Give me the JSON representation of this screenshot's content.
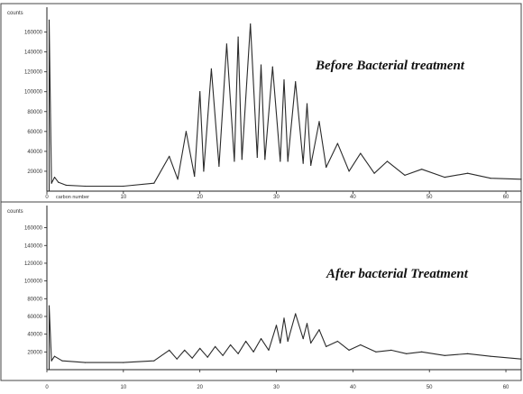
{
  "chart_data": [
    {
      "type": "line",
      "title": "Before Bacterial treatment",
      "ylabel": "counts",
      "xlabel": "carbon number",
      "xlim": [
        0,
        62
      ],
      "ylim": [
        0,
        185000
      ],
      "xticks": [
        "0",
        "10",
        "20",
        "30",
        "40",
        "50",
        "60"
      ],
      "yticks": [
        "20000",
        "40000",
        "60000",
        "80000",
        "100000",
        "120000",
        "140000",
        "160000"
      ],
      "grid": false,
      "x": [
        0.3,
        0.6,
        1.0,
        1.5,
        2.5,
        5.0,
        10.0,
        14.0,
        16.0,
        17.1,
        18.2,
        19.3,
        20.0,
        20.5,
        21.5,
        22.5,
        23.5,
        24.5,
        25.0,
        25.5,
        26.6,
        27.5,
        28.0,
        28.5,
        29.5,
        30.5,
        31.0,
        31.5,
        32.5,
        33.5,
        34.0,
        34.5,
        35.6,
        36.5,
        38.0,
        39.5,
        41.0,
        42.8,
        44.5,
        46.8,
        49.0,
        52.0,
        55.0,
        58.0,
        62.0
      ],
      "values": [
        172000,
        8000,
        14000,
        9000,
        6000,
        5000,
        5000,
        8000,
        35000,
        12000,
        60000,
        15000,
        100000,
        20000,
        123000,
        25000,
        148000,
        30000,
        155000,
        32000,
        168000,
        34000,
        127000,
        32000,
        125000,
        30000,
        112000,
        30000,
        110000,
        28000,
        88000,
        26000,
        70000,
        24000,
        48000,
        20000,
        38000,
        18000,
        30000,
        16000,
        22000,
        14000,
        18000,
        13000,
        12000
      ]
    },
    {
      "type": "line",
      "title": "After bacterial Treatment",
      "ylabel": "counts",
      "xlabel": "",
      "xlim": [
        0,
        62
      ],
      "ylim": [
        0,
        185000
      ],
      "xticks": [
        "0",
        "10",
        "20",
        "30",
        "40",
        "50",
        "60"
      ],
      "yticks": [
        "20000",
        "40000",
        "60000",
        "80000",
        "100000",
        "120000",
        "140000",
        "160000"
      ],
      "grid": false,
      "x": [
        0.3,
        0.6,
        1.0,
        2.0,
        5.0,
        10.0,
        14.0,
        16.0,
        17.0,
        18.0,
        19.0,
        20.0,
        21.0,
        22.0,
        23.0,
        24.0,
        25.0,
        26.0,
        27.0,
        28.0,
        29.0,
        30.0,
        30.5,
        31.0,
        31.5,
        32.5,
        33.5,
        34.0,
        34.5,
        35.6,
        36.5,
        38.0,
        39.5,
        41.0,
        43.0,
        45.0,
        47.0,
        49.0,
        52.0,
        55.0,
        58.0,
        62.0
      ],
      "values": [
        72000,
        10000,
        15000,
        10000,
        8000,
        8000,
        10000,
        22000,
        12000,
        22000,
        13000,
        24000,
        14000,
        26000,
        16000,
        28000,
        18000,
        32000,
        20000,
        35000,
        22000,
        50000,
        30000,
        58000,
        32000,
        63000,
        35000,
        52000,
        30000,
        45000,
        26000,
        32000,
        22000,
        28000,
        20000,
        22000,
        18000,
        20000,
        16000,
        18000,
        15000,
        12000
      ]
    }
  ]
}
